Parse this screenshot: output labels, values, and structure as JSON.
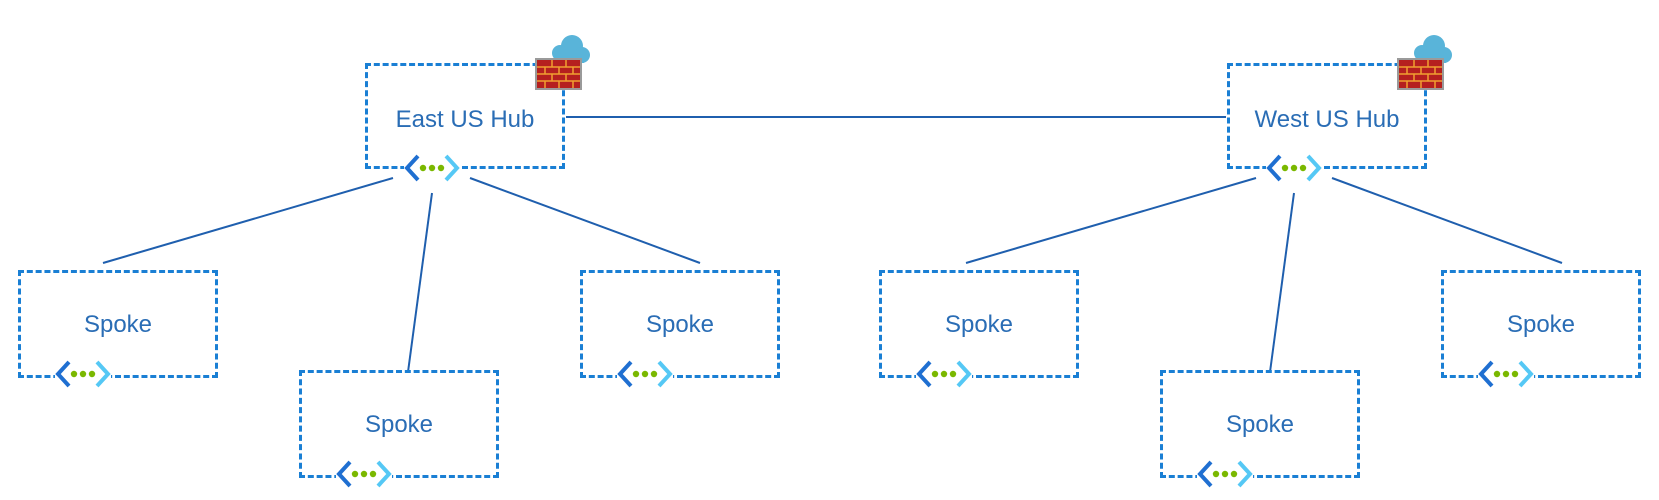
{
  "hubs": [
    {
      "id": "east",
      "label": "East US Hub"
    },
    {
      "id": "west",
      "label": "West US Hub"
    }
  ],
  "spokes": [
    {
      "label": "Spoke"
    },
    {
      "label": "Spoke"
    },
    {
      "label": "Spoke"
    },
    {
      "label": "Spoke"
    },
    {
      "label": "Spoke"
    },
    {
      "label": "Spoke"
    }
  ],
  "icons": {
    "hub": [
      "firewall-icon",
      "cloud-icon",
      "virtual-network-icon"
    ],
    "spoke": [
      "virtual-network-icon"
    ]
  },
  "colors": {
    "border": "#1a7fd4",
    "text": "#2a6db5",
    "line": "#1f5fae",
    "vnet_bracket_dark": "#1f6fd1",
    "vnet_bracket_light": "#55c8f5",
    "vnet_dots": "#7ab800",
    "firewall": "#b5201f",
    "cloud": "#59b4d9"
  }
}
